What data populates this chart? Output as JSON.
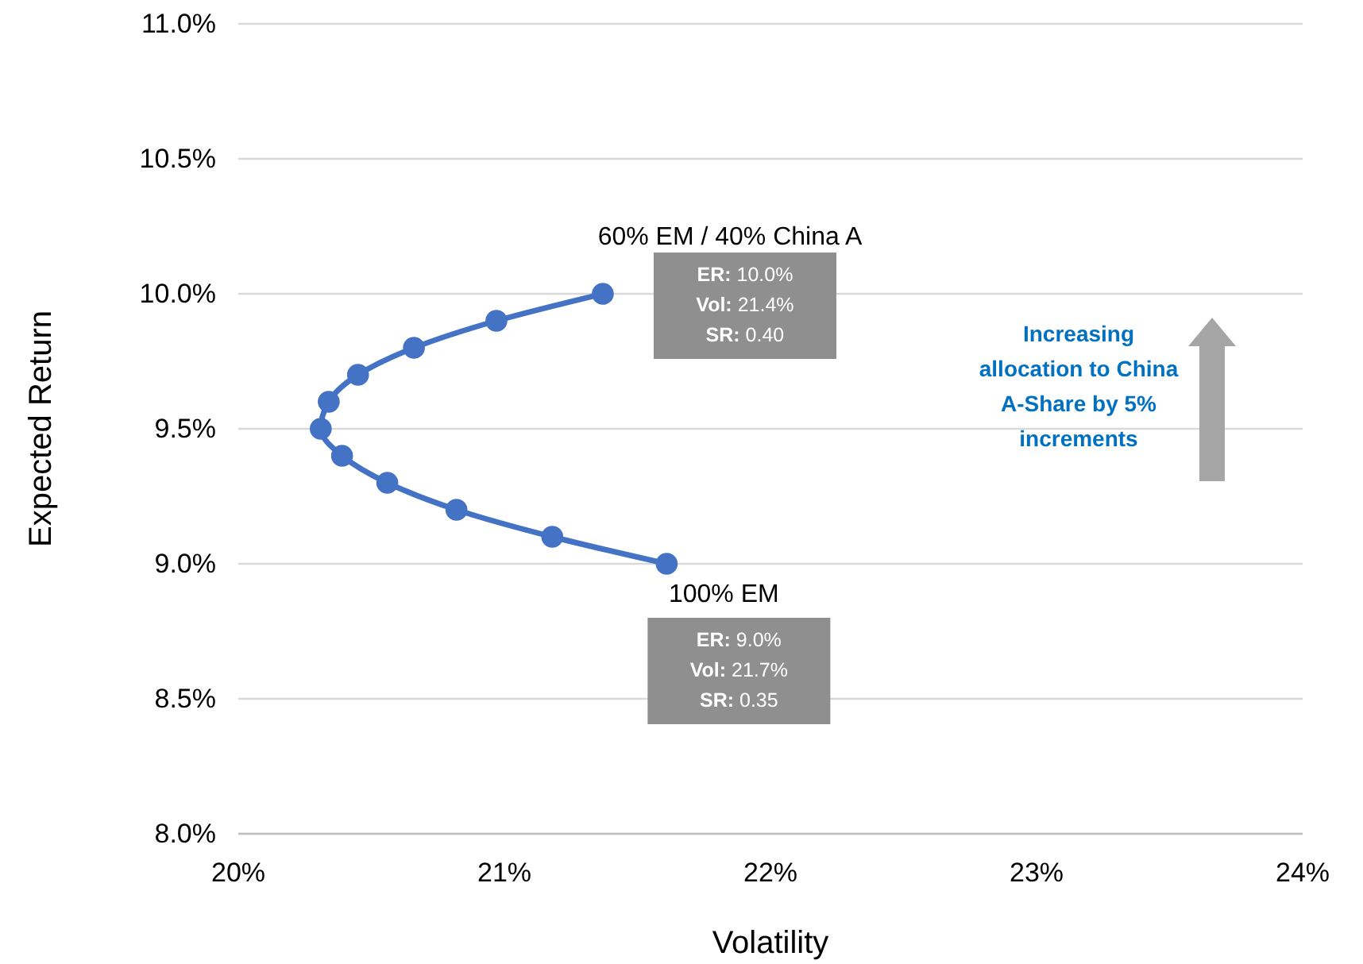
{
  "chart_data": {
    "type": "line",
    "xlabel": "Volatility",
    "ylabel": "Expected Return",
    "x": [
      21.61,
      21.18,
      20.82,
      20.56,
      20.39,
      20.31,
      20.34,
      20.45,
      20.66,
      20.97,
      21.37
    ],
    "series": [
      {
        "color": "#4472c4",
        "values": [
          9.0,
          9.1,
          9.2,
          9.3,
          9.4,
          9.5,
          9.6,
          9.7,
          9.8,
          9.9,
          10.0
        ]
      }
    ],
    "marker": "circle",
    "xlim": [
      20,
      24
    ],
    "xticks": [
      {
        "value": 20,
        "label": "20%"
      },
      {
        "value": 21,
        "label": "21%"
      },
      {
        "value": 22,
        "label": "22%"
      },
      {
        "value": 23,
        "label": "23%"
      },
      {
        "value": 24,
        "label": "24%"
      }
    ],
    "ylim": [
      8,
      11
    ],
    "yticks": [
      {
        "value": 8,
        "label": "8.0%"
      },
      {
        "value": 8.5,
        "label": "8.5%"
      },
      {
        "value": 9,
        "label": "9.0%"
      },
      {
        "value": 9.5,
        "label": "9.5%"
      },
      {
        "value": 10,
        "label": "10.0%"
      },
      {
        "value": 10.5,
        "label": "10.5%"
      },
      {
        "value": 11,
        "label": "11.0%"
      }
    ],
    "grid": "y",
    "annotations": [
      {
        "text": "60% EM / 40% China A",
        "x": 21.37,
        "y": 10.0
      },
      "ER: 10.0%\nVol: 21.4%\nSR: 0.40",
      {
        "text": "100% EM",
        "x": 21.61,
        "y": 9.0
      },
      "ER: 9.0%\nVol: 21.7%\nSR: 0.35",
      "Increasing allocation to China A-Share by 5% increments"
    ]
  }
}
